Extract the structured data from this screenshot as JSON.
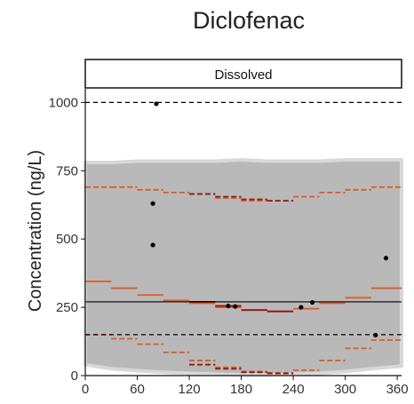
{
  "chart_data": {
    "type": "scatter",
    "title": "Diclofenac",
    "facet_label": "Dissolved",
    "xlabel": "",
    "ylabel": "Concentration (ng/L)",
    "xlim": [
      0,
      365
    ],
    "ylim": [
      0,
      1050
    ],
    "x_ticks": [
      0,
      60,
      120,
      180,
      240,
      300,
      360
    ],
    "y_ticks": [
      0,
      250,
      500,
      750,
      1000
    ],
    "grid": false,
    "reference_lines": [
      {
        "y": 1000,
        "style": "dashed"
      },
      {
        "y": 270,
        "style": "solid"
      },
      {
        "y": 150,
        "style": "dashed"
      }
    ],
    "band": {
      "x": [
        0,
        30,
        60,
        90,
        120,
        150,
        180,
        210,
        240,
        270,
        300,
        330,
        365
      ],
      "lower": [
        40,
        25,
        18,
        12,
        8,
        5,
        3,
        3,
        5,
        8,
        15,
        25,
        35
      ],
      "upper": [
        780,
        780,
        785,
        785,
        785,
        785,
        790,
        785,
        785,
        785,
        790,
        790,
        790
      ]
    },
    "step_series": [
      {
        "style": "solid",
        "color": "#e05a1c",
        "x": [
          0,
          30,
          60,
          90,
          120,
          150,
          180,
          210,
          240,
          270,
          300,
          330,
          365
        ],
        "y": [
          345,
          320,
          295,
          275,
          265,
          250,
          240,
          235,
          245,
          265,
          285,
          320,
          345
        ]
      },
      {
        "style": "dashed",
        "color": "#e05a1c",
        "x": [
          0,
          30,
          60,
          90,
          120,
          150,
          180,
          210,
          240,
          270,
          300,
          330,
          365
        ],
        "y": [
          690,
          690,
          680,
          670,
          665,
          650,
          640,
          640,
          655,
          670,
          680,
          690,
          690
        ]
      },
      {
        "style": "dashed",
        "color": "#e05a1c",
        "x": [
          0,
          30,
          60,
          90,
          120,
          150,
          180,
          210,
          240,
          270,
          300,
          330,
          365
        ],
        "y": [
          150,
          135,
          115,
          85,
          55,
          30,
          15,
          10,
          20,
          55,
          100,
          130,
          155
        ]
      },
      {
        "style": "solid",
        "color": "#8b1a1a",
        "x": [
          120,
          150,
          180,
          210,
          240
        ],
        "y": [
          270,
          255,
          240,
          235,
          240
        ]
      },
      {
        "style": "dashed",
        "color": "#8b1a1a",
        "x": [
          120,
          150,
          180,
          210,
          240
        ],
        "y": [
          665,
          655,
          645,
          640,
          645
        ]
      },
      {
        "style": "dashed",
        "color": "#8b1a1a",
        "x": [
          120,
          150,
          180,
          210,
          240
        ],
        "y": [
          40,
          25,
          12,
          8,
          12
        ]
      }
    ],
    "points": [
      {
        "x": 82,
        "y": 995
      },
      {
        "x": 78,
        "y": 630
      },
      {
        "x": 78,
        "y": 478
      },
      {
        "x": 165,
        "y": 255
      },
      {
        "x": 173,
        "y": 253
      },
      {
        "x": 249,
        "y": 250
      },
      {
        "x": 262,
        "y": 268
      },
      {
        "x": 335,
        "y": 148
      },
      {
        "x": 347,
        "y": 430
      }
    ],
    "colors": {
      "band": "#b9b9b9",
      "band_edge": "#d8d8d8",
      "points": "#000000",
      "steps": "#e05a1c",
      "steps_dark": "#8b1a1a"
    }
  }
}
